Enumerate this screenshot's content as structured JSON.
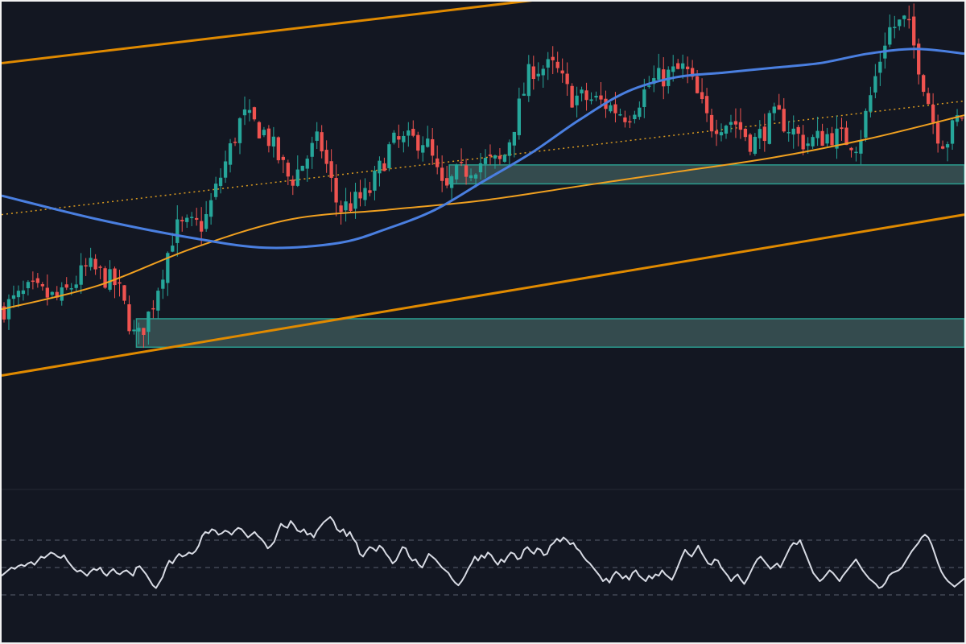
{
  "theme": {
    "background": "#131722",
    "page_border": "#f2f2f2",
    "candle_up": "#26a69a",
    "candle_down": "#ef5350",
    "channel_line": "#e08a00",
    "channel_mid_dotted": "#d99a20",
    "moving_average_fast": "#f0a020",
    "moving_average_slow": "#4a7fe0",
    "zone_fill": "#3b5556",
    "zone_border": "#2a9d8f",
    "oscillator_line": "#d8dbe4",
    "oscillator_level": "#5a5f6e",
    "divider": "#262a34"
  },
  "chart_data": [
    {
      "type": "candlestick",
      "title": "",
      "xlabel": "",
      "ylabel": "",
      "bars": 200,
      "ylim": [
        0,
        100
      ],
      "grid": false,
      "legend": "none",
      "close_path": [
        [
          0,
          35
        ],
        [
          6,
          39
        ],
        [
          12,
          37
        ],
        [
          18,
          44
        ],
        [
          24,
          40
        ],
        [
          28,
          28
        ],
        [
          31,
          35
        ],
        [
          36,
          52
        ],
        [
          42,
          53
        ],
        [
          50,
          76
        ],
        [
          55,
          72
        ],
        [
          60,
          62
        ],
        [
          66,
          71
        ],
        [
          70,
          56
        ],
        [
          76,
          59
        ],
        [
          81,
          70
        ],
        [
          88,
          71
        ],
        [
          92,
          59
        ],
        [
          94,
          63
        ],
        [
          99,
          66
        ],
        [
          104,
          66
        ],
        [
          110,
          86
        ],
        [
          115,
          86
        ],
        [
          118,
          80
        ],
        [
          124,
          79
        ],
        [
          130,
          76
        ],
        [
          135,
          83
        ],
        [
          142,
          86
        ],
        [
          147,
          74
        ],
        [
          152,
          75
        ],
        [
          156,
          70
        ],
        [
          161,
          76
        ],
        [
          167,
          70
        ],
        [
          172,
          72
        ],
        [
          178,
          70
        ],
        [
          184,
          94
        ],
        [
          188,
          96
        ],
        [
          191,
          85
        ],
        [
          194,
          73
        ],
        [
          196,
          70
        ],
        [
          199,
          76
        ]
      ],
      "support_resistance_zones": [
        {
          "bar_start": 93,
          "bar_end": 200,
          "low": 61.5,
          "high": 65.5
        },
        {
          "bar_start": 28,
          "bar_end": 200,
          "low": 27,
          "high": 33
        }
      ],
      "channel": {
        "upper": {
          "start": [
            0,
            87
          ],
          "end": [
            133,
            103
          ]
        },
        "middle": {
          "start": [
            0,
            55
          ],
          "end": [
            200,
            79
          ]
        },
        "lower": {
          "start": [
            0,
            21
          ],
          "end": [
            200,
            55
          ]
        }
      },
      "moving_average_fast": [
        [
          0,
          35
        ],
        [
          20,
          40
        ],
        [
          40,
          48
        ],
        [
          60,
          54
        ],
        [
          80,
          56
        ],
        [
          100,
          58
        ],
        [
          120,
          61
        ],
        [
          140,
          64
        ],
        [
          160,
          67
        ],
        [
          180,
          71
        ],
        [
          200,
          76
        ]
      ],
      "moving_average_slow": [
        [
          0,
          59
        ],
        [
          20,
          54
        ],
        [
          40,
          50
        ],
        [
          55,
          48
        ],
        [
          70,
          49
        ],
        [
          80,
          52
        ],
        [
          90,
          56
        ],
        [
          100,
          62
        ],
        [
          110,
          68
        ],
        [
          120,
          75
        ],
        [
          130,
          81
        ],
        [
          140,
          84
        ],
        [
          150,
          85
        ],
        [
          160,
          86
        ],
        [
          170,
          87
        ],
        [
          180,
          89
        ],
        [
          190,
          90
        ],
        [
          200,
          89
        ]
      ]
    },
    {
      "type": "line",
      "title": "",
      "xlabel": "",
      "ylabel": "",
      "ylim": [
        0,
        100
      ],
      "levels": [
        70,
        50,
        30
      ],
      "grid": false,
      "legend": "none",
      "series": [
        {
          "values": [
            44,
            46,
            48,
            50,
            49,
            51,
            52,
            51,
            53,
            54,
            52,
            55,
            58,
            57,
            59,
            61,
            60,
            58,
            57,
            59,
            55,
            52,
            49,
            47,
            48,
            46,
            44,
            47,
            49,
            48,
            50,
            46,
            44,
            47,
            49,
            46,
            45,
            47,
            48,
            46,
            44,
            50,
            51,
            48,
            45,
            41,
            37,
            35,
            39,
            43,
            50,
            55,
            53,
            57,
            60,
            58,
            59,
            61,
            60,
            62,
            66,
            73,
            76,
            75,
            78,
            77,
            74,
            75,
            77,
            76,
            74,
            77,
            79,
            78,
            75,
            72,
            74,
            76,
            73,
            71,
            68,
            64,
            66,
            69,
            76,
            82,
            80,
            79,
            84,
            81,
            77,
            76,
            78,
            74,
            75,
            72,
            77,
            80,
            83,
            85,
            87,
            84,
            78,
            76,
            78,
            73,
            76,
            71,
            68,
            60,
            58,
            62,
            65,
            64,
            62,
            66,
            64,
            60,
            57,
            53,
            55,
            60,
            65,
            64,
            58,
            55,
            56,
            52,
            50,
            55,
            60,
            58,
            56,
            53,
            50,
            48,
            46,
            42,
            39,
            37,
            40,
            44,
            49,
            53,
            58,
            55,
            59,
            57,
            61,
            59,
            55,
            52,
            56,
            54,
            58,
            61,
            60,
            56,
            57,
            63,
            65,
            62,
            60,
            64,
            63,
            59,
            60,
            66,
            68,
            71,
            69,
            72,
            70,
            67,
            68,
            64,
            62,
            58,
            55,
            53,
            50,
            47,
            44,
            40,
            42,
            39,
            44,
            47,
            45,
            42,
            44,
            41,
            46,
            48,
            44,
            42,
            40,
            44,
            42,
            45,
            44,
            48,
            45,
            43,
            41,
            46,
            52,
            58,
            63,
            60,
            58,
            62,
            66,
            61,
            57,
            53,
            52,
            56,
            55,
            50,
            47,
            44,
            40,
            43,
            45,
            41,
            38,
            42,
            47,
            52,
            56,
            58,
            55,
            52,
            49,
            51,
            53,
            50,
            55,
            60,
            65,
            68,
            67,
            70,
            64,
            58,
            52,
            46,
            43,
            40,
            42,
            45,
            48,
            46,
            43,
            40,
            44,
            47,
            50,
            53,
            56,
            52,
            48,
            45,
            42,
            40,
            38,
            35,
            36,
            39,
            44,
            46,
            47,
            48,
            50,
            54,
            58,
            62,
            65,
            68,
            72,
            74,
            72,
            67,
            60,
            53,
            47,
            43,
            40,
            38,
            36,
            38,
            40,
            42
          ]
        }
      ]
    }
  ]
}
